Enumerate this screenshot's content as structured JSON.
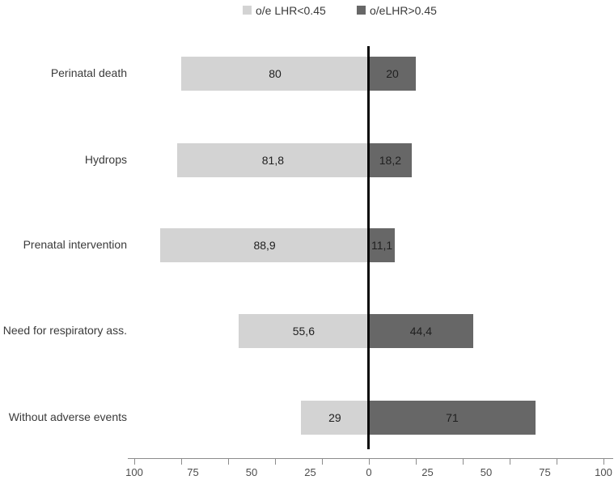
{
  "legend": [
    {
      "label": "o/e LHR<0.45",
      "color": "#d3d3d3"
    },
    {
      "label": "o/eLHR>0.45",
      "color": "#676767"
    }
  ],
  "chart_data": {
    "type": "bar",
    "variant": "horizontal-diverging-stacked",
    "title": "",
    "xlabel": "",
    "ylabel": "",
    "categories": [
      "Perinatal death",
      "Hydrops",
      "Prenatal intervention",
      "Need for respiratory ass.",
      "Without adverse events"
    ],
    "series": [
      {
        "name": "o/e LHR<0.45",
        "side": "left",
        "color": "#d3d3d3",
        "values": [
          80,
          81.8,
          88.9,
          55.6,
          29
        ],
        "value_labels": [
          "80",
          "81,8",
          "88,9",
          "55,6",
          "29"
        ]
      },
      {
        "name": "o/eLHR>0.45",
        "side": "right",
        "color": "#676767",
        "values": [
          20,
          18.2,
          11.1,
          44.4,
          71
        ],
        "value_labels": [
          "20",
          "18,2",
          "11,1",
          "44,4",
          "71"
        ]
      }
    ],
    "axis": {
      "range": [
        -100,
        100
      ],
      "tick_labels": [
        "100",
        "75",
        "50",
        "25",
        "0",
        "25",
        "50",
        "75",
        "100"
      ],
      "tick_values": [
        100,
        75,
        50,
        25,
        0,
        25,
        50,
        75,
        100
      ],
      "minor_tick_unit": 20,
      "grid": false,
      "legend_position": "top"
    }
  }
}
